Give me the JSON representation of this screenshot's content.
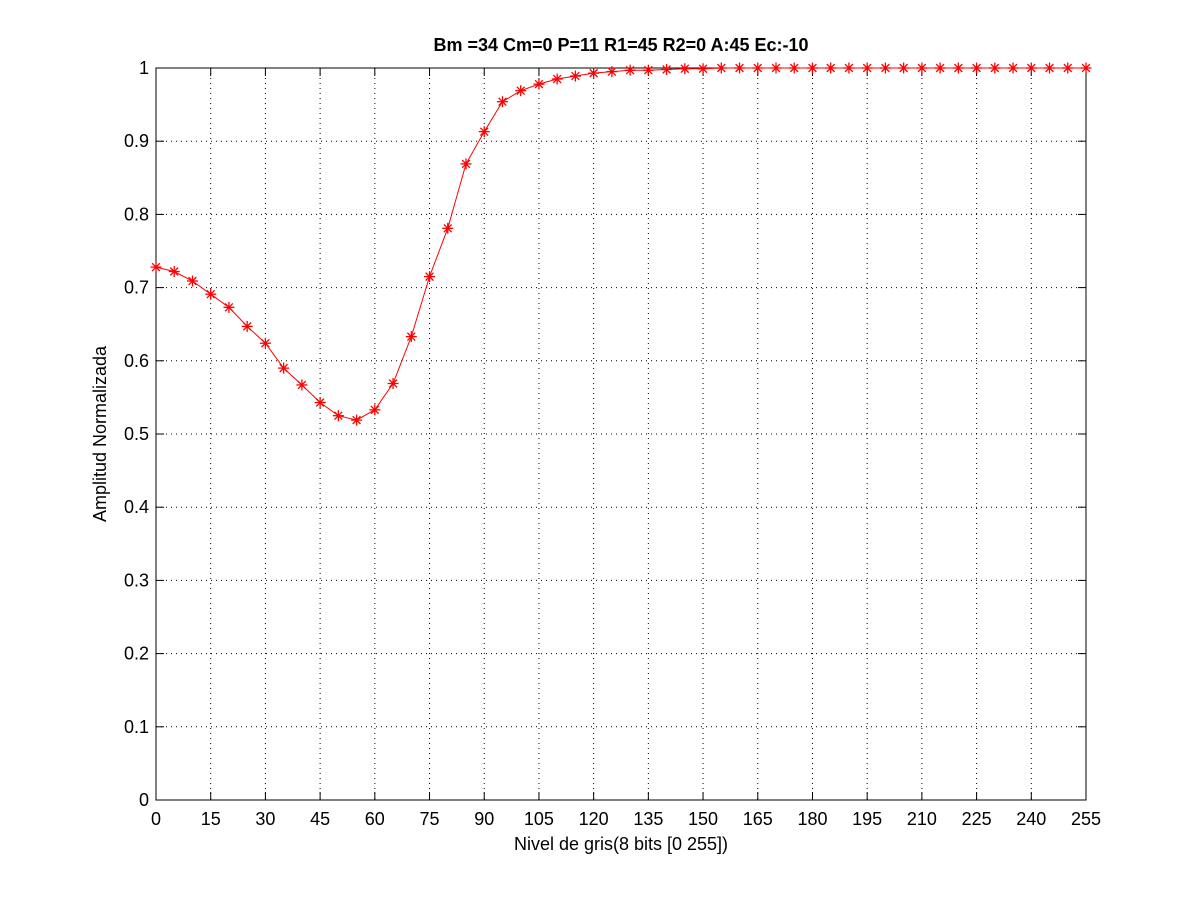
{
  "chart_data": {
    "type": "line",
    "title": "Bm =34  Cm=0  P=11  R1=45  R2=0  A:45  Ec:-10",
    "xlabel": "Nivel de gris(8 bits [0 255])",
    "ylabel": "Amplitud Normalizada",
    "xlim": [
      0,
      255
    ],
    "ylim": [
      0,
      1
    ],
    "xticks": [
      0,
      15,
      30,
      45,
      60,
      75,
      90,
      105,
      120,
      135,
      150,
      165,
      180,
      195,
      210,
      225,
      240,
      255
    ],
    "yticks": [
      0,
      0.1,
      0.2,
      0.3,
      0.4,
      0.5,
      0.6,
      0.7,
      0.8,
      0.9,
      1
    ],
    "ytick_labels": [
      "0",
      "0.1",
      "0.2",
      "0.3",
      "0.4",
      "0.5",
      "0.6",
      "0.7",
      "0.8",
      "0.9",
      "1"
    ],
    "grid": true,
    "grid_style": "dotted",
    "series": [
      {
        "color": "#ff0000",
        "marker": "asterisk",
        "x": [
          0,
          5,
          10,
          15,
          20,
          25,
          30,
          35,
          40,
          45,
          50,
          55,
          60,
          65,
          70,
          75,
          80,
          85,
          90,
          95,
          100,
          105,
          110,
          115,
          120,
          125,
          130,
          135,
          140,
          145,
          150,
          155,
          160,
          165,
          170,
          175,
          180,
          185,
          190,
          195,
          200,
          205,
          210,
          215,
          220,
          225,
          230,
          235,
          240,
          245,
          250,
          255
        ],
        "y": [
          0.728,
          0.722,
          0.709,
          0.691,
          0.673,
          0.647,
          0.624,
          0.59,
          0.567,
          0.543,
          0.525,
          0.519,
          0.533,
          0.569,
          0.633,
          0.715,
          0.781,
          0.869,
          0.913,
          0.954,
          0.969,
          0.978,
          0.985,
          0.989,
          0.993,
          0.995,
          0.997,
          0.997,
          0.998,
          0.999,
          0.999,
          1.0,
          1.0,
          1.0,
          1.0,
          1.0,
          1.0,
          1.0,
          1.0,
          1.0,
          1.0,
          1.0,
          1.0,
          1.0,
          1.0,
          1.0,
          1.0,
          1.0,
          1.0,
          1.0,
          1.0,
          1.0
        ]
      }
    ]
  }
}
